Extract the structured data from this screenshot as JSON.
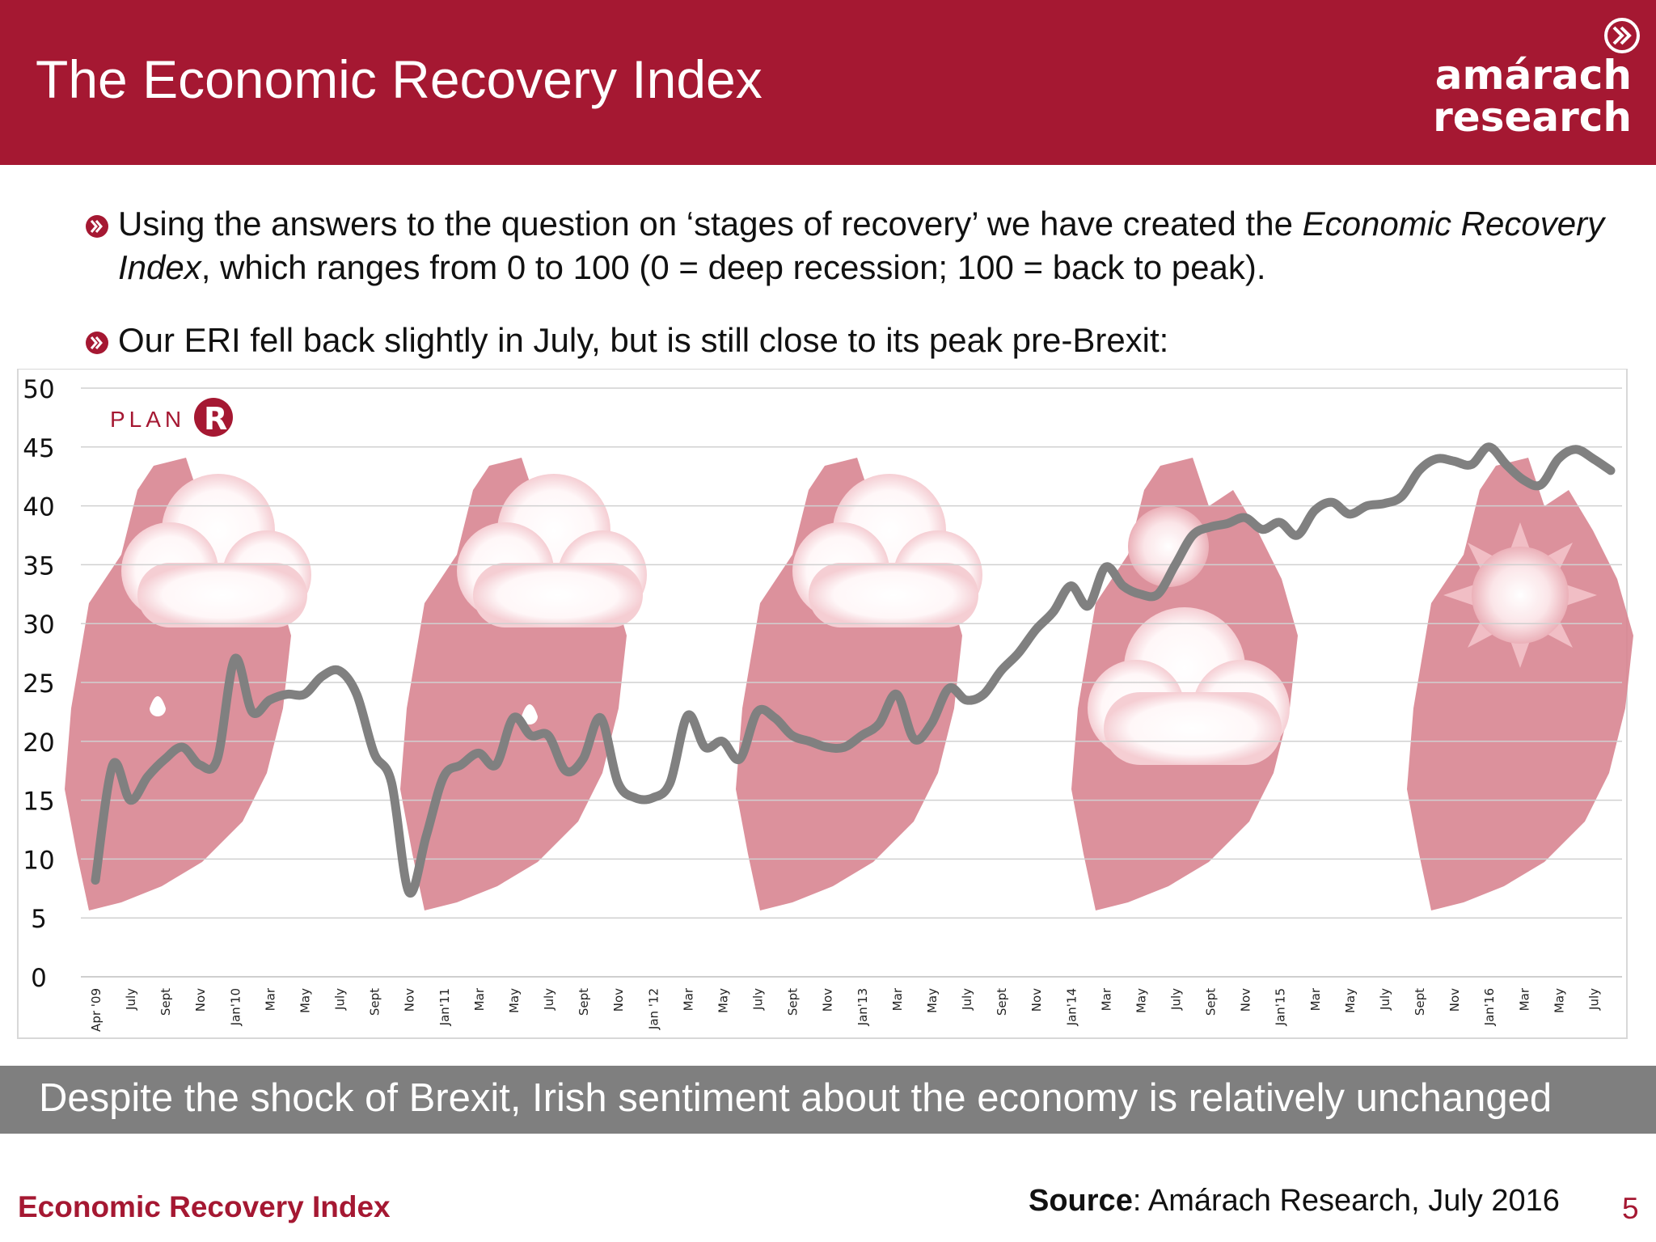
{
  "header": {
    "title": "The Economic Recovery Index",
    "logo_line1": "amárach",
    "logo_line2": "research"
  },
  "bullets": [
    {
      "text_a": "Using the answers to the question on ‘stages of recovery’ we have created the ",
      "text_b": "Economic Recovery Index",
      "text_c": ", which ranges from 0 to 100 (0 = deep recession; 100 = back to peak)."
    },
    {
      "text_a": "Our ERI fell back slightly in July, but is still close to its peak pre-Brexit:"
    }
  ],
  "chart_watermark": {
    "word": "PLAN",
    "letter": "R"
  },
  "chart_data": {
    "type": "line",
    "title": "",
    "xlabel": "",
    "ylabel": "",
    "ylim": [
      0,
      50
    ],
    "y_ticks": [
      "0",
      "5",
      "10",
      "15",
      "20",
      "25",
      "30",
      "35",
      "40",
      "45",
      "50"
    ],
    "grid": true,
    "x_tick_labels": [
      "Apr '09",
      "July",
      "Sept",
      "Nov",
      "Jan'10",
      "Mar",
      "May",
      "July",
      "Sept",
      "Nov",
      "Jan'11",
      "Mar",
      "May",
      "July",
      "Sept",
      "Nov",
      "Jan '12",
      "Mar",
      "May",
      "July",
      "Sept",
      "Nov",
      "Jan'13",
      "Mar",
      "May",
      "July",
      "Sept",
      "Nov",
      "Jan'14",
      "Mar",
      "May",
      "July",
      "Sept",
      "Nov",
      "Jan'15",
      "Mar",
      "May",
      "July",
      "Sept",
      "Nov",
      "Jan'16",
      "Mar",
      "May",
      "July"
    ],
    "series": [
      {
        "color": "#808080",
        "x": [
          "2009-04",
          "2009-05",
          "2009-06",
          "2009-07",
          "2009-08",
          "2009-09",
          "2009-10",
          "2009-11",
          "2009-12",
          "2010-01",
          "2010-02",
          "2010-03",
          "2010-04",
          "2010-05",
          "2010-06",
          "2010-07",
          "2010-08",
          "2010-09",
          "2010-10",
          "2010-11",
          "2010-12",
          "2011-01",
          "2011-02",
          "2011-03",
          "2011-04",
          "2011-05",
          "2011-06",
          "2011-07",
          "2011-08",
          "2011-09",
          "2011-10",
          "2011-11",
          "2011-12",
          "2012-01",
          "2012-02",
          "2012-03",
          "2012-04",
          "2012-05",
          "2012-06",
          "2012-07",
          "2012-08",
          "2012-09",
          "2012-10",
          "2012-11",
          "2012-12",
          "2013-01",
          "2013-02",
          "2013-03",
          "2013-04",
          "2013-05",
          "2013-06",
          "2013-07",
          "2013-08",
          "2013-09",
          "2013-10",
          "2013-11",
          "2013-12",
          "2014-01",
          "2014-02",
          "2014-03",
          "2014-04",
          "2014-05",
          "2014-06",
          "2014-07",
          "2014-08",
          "2014-09",
          "2014-10",
          "2014-11",
          "2014-12",
          "2015-01",
          "2015-02",
          "2015-03",
          "2015-04",
          "2015-05",
          "2015-06",
          "2015-07",
          "2015-08",
          "2015-09",
          "2015-10",
          "2015-11",
          "2015-12",
          "2016-01",
          "2016-02",
          "2016-03",
          "2016-04",
          "2016-05",
          "2016-06",
          "2016-07"
        ],
        "values": [
          8.2,
          18,
          15,
          17,
          18.5,
          19.5,
          18,
          18.5,
          27,
          22.5,
          23.5,
          24,
          24,
          25.5,
          26,
          24,
          19,
          16.5,
          7.2,
          12,
          17,
          18,
          19,
          18,
          22,
          20.5,
          20.5,
          17.5,
          18.5,
          22,
          16.5,
          15.2,
          15.2,
          16.5,
          22.2,
          19.5,
          20,
          18.5,
          22.5,
          22,
          20.5,
          20,
          19.5,
          19.5,
          20.5,
          21.5,
          24,
          20.2,
          21.5,
          24.5,
          23.5,
          24,
          26,
          27.5,
          29.5,
          31,
          33.2,
          31.5,
          34.8,
          33.2,
          32.5,
          32.5,
          35,
          37.5,
          38.2,
          38.5,
          39,
          38,
          38.6,
          37.5,
          39.6,
          40.3,
          39.3,
          40,
          40.2,
          40.8,
          43,
          44,
          43.8,
          43.5,
          45,
          43.5,
          42.2,
          41.8,
          44,
          44.8,
          44,
          43
        ]
      }
    ]
  },
  "banner": {
    "text": "Despite the shock of Brexit, Irish sentiment about the economy is relatively unchanged"
  },
  "footer": {
    "left": "Economic Recovery Index",
    "source_label": "Source",
    "source_text": ": Amárach Research, July 2016",
    "page_number": "5"
  },
  "colors": {
    "brand": "#a51832",
    "banner": "#7f7f7f",
    "series_line": "#808080",
    "map_fill": "#d98591"
  }
}
